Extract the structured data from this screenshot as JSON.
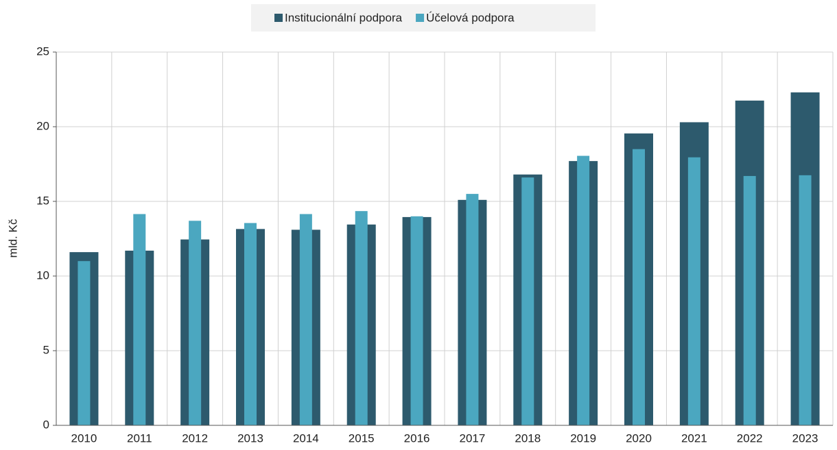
{
  "chart_data": {
    "type": "bar",
    "categories": [
      "2010",
      "2011",
      "2012",
      "2013",
      "2014",
      "2015",
      "2016",
      "2017",
      "2018",
      "2019",
      "2020",
      "2021",
      "2022",
      "2023"
    ],
    "series": [
      {
        "name": "Institucionální podpora",
        "color": "#2d5a6d",
        "values": [
          11.6,
          11.7,
          12.45,
          13.15,
          13.1,
          13.45,
          13.95,
          15.1,
          16.8,
          17.7,
          19.55,
          20.3,
          21.75,
          22.3
        ]
      },
      {
        "name": "Účelová podpora",
        "color": "#4ba7c0",
        "values": [
          11.0,
          14.15,
          13.7,
          13.55,
          14.15,
          14.35,
          14.0,
          15.5,
          16.6,
          18.05,
          18.5,
          17.95,
          16.7,
          16.75
        ]
      }
    ],
    "ylabel": "mld. Kč",
    "ylim": [
      0,
      25
    ],
    "yticks": [
      0,
      5,
      10,
      15,
      20,
      25
    ],
    "grid": true
  }
}
